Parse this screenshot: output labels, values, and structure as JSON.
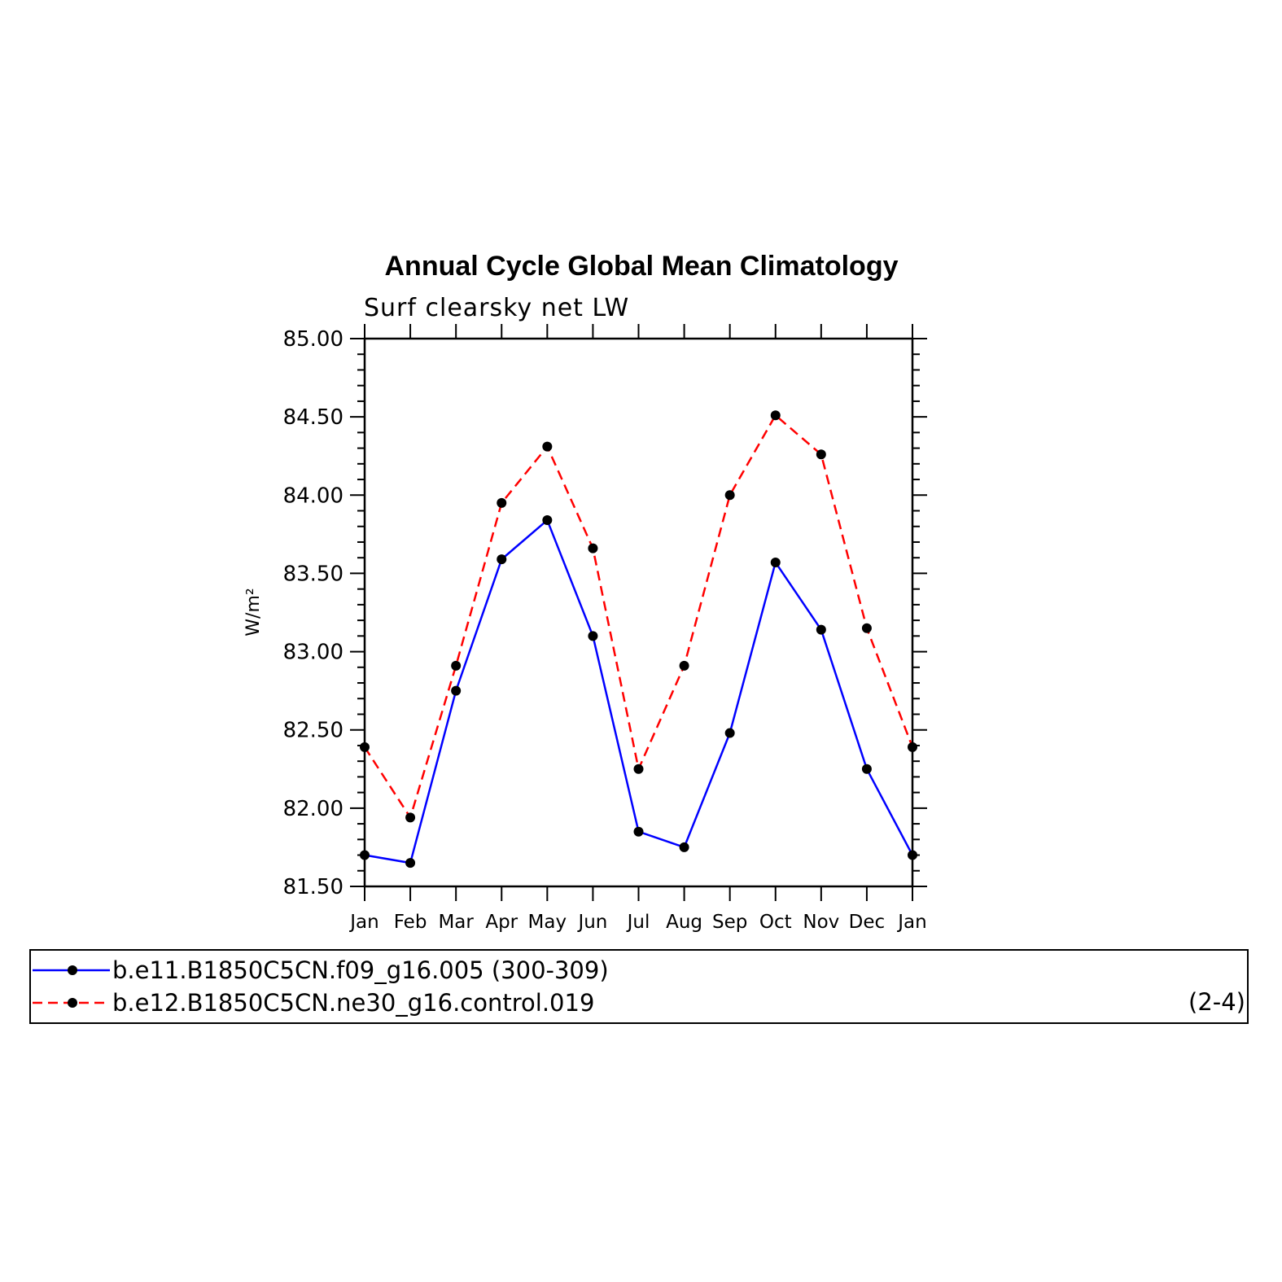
{
  "chart_data": {
    "type": "line",
    "title": "Annual Cycle Global Mean Climatology",
    "subtitle": "Surf clearsky net LW",
    "ylabel": "W/m²",
    "xlabel": "",
    "categories": [
      "Jan",
      "Feb",
      "Mar",
      "Apr",
      "May",
      "Jun",
      "Jul",
      "Aug",
      "Sep",
      "Oct",
      "Nov",
      "Dec",
      "Jan"
    ],
    "ylim": [
      81.5,
      85.0
    ],
    "yticks": [
      "81.50",
      "82.00",
      "82.50",
      "83.00",
      "83.50",
      "84.00",
      "84.50",
      "85.00"
    ],
    "grid": false,
    "legend_placement": "below",
    "series": [
      {
        "name": "b.e11.B1850C5CN.f09_g16.005 (300-309)",
        "color": "#0000ff",
        "dash": "solid",
        "values": [
          81.7,
          81.65,
          82.75,
          83.59,
          83.84,
          83.1,
          81.85,
          81.75,
          82.48,
          83.57,
          83.14,
          82.25,
          81.7
        ]
      },
      {
        "name": "b.e12.B1850C5CN.ne30_g16.control.019",
        "color": "#ff0000",
        "dash": "dashed",
        "values": [
          82.39,
          81.94,
          82.91,
          83.95,
          84.31,
          83.66,
          82.25,
          82.91,
          84.0,
          84.51,
          84.26,
          83.15,
          82.39
        ]
      }
    ],
    "annotation": "(2-4)"
  }
}
